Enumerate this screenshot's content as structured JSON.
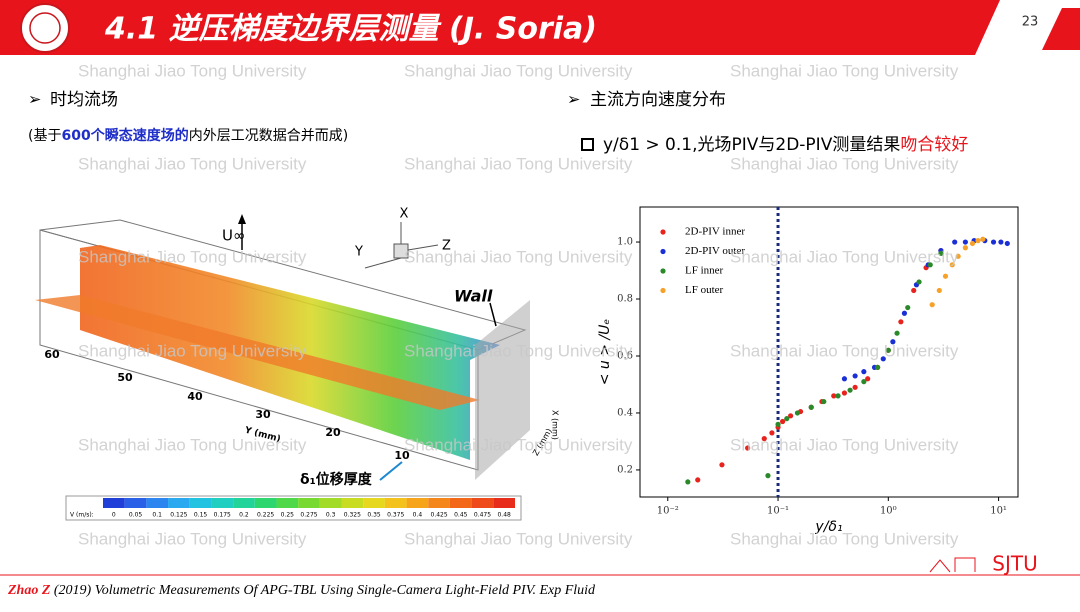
{
  "header": {
    "title": "4.1 逆压梯度边界层测量 (J. Soria)",
    "page_number": "23"
  },
  "watermark": "Shanghai Jiao Tong University",
  "left": {
    "bullet": "时均流场",
    "note_parts": [
      "(基于",
      "600个瞬态速度场的",
      "内外层工况数据合并而成)"
    ],
    "figure": {
      "velocity_label": "U∞",
      "axis_x": "X",
      "axis_y": "Y",
      "axis_z": "Z",
      "wall": "Wall",
      "y_ticks": [
        "60",
        "50",
        "40",
        "30",
        "20",
        "10"
      ],
      "y_axis_label": "Y (mm)",
      "x_axis_label": "X (mm)",
      "z_axis_label": "Z (mm)",
      "annotation": "δ₁位移厚度",
      "colorbar_label": "V (m/s):",
      "colorbar_ticks": [
        "0",
        "0.05",
        "0.1",
        "0.125",
        "0.15",
        "0.175",
        "0.2",
        "0.225",
        "0.25",
        "0.275",
        "0.3",
        "0.325",
        "0.35",
        "0.375",
        "0.4",
        "0.425",
        "0.45",
        "0.475",
        "0.48"
      ]
    }
  },
  "right": {
    "bullet": "主流方向速度分布",
    "statement_parts": [
      "y/δ1 > 0.1,光场PIV与2D-PIV测量结果",
      "吻合较好"
    ]
  },
  "chart_data": {
    "type": "scatter",
    "x_label": "y/δ₁",
    "y_label": "< u > /Uₑ",
    "log_x": true,
    "ref_line_x": 0.1,
    "xlim": [
      0.0056,
      15
    ],
    "ylim": [
      0.105,
      1.123
    ],
    "xticks": [
      {
        "value": 0.01,
        "label": "10⁻²"
      },
      {
        "value": 0.1,
        "label": "10⁻¹"
      },
      {
        "value": 1,
        "label": "10⁰"
      },
      {
        "value": 10,
        "label": "10¹"
      }
    ],
    "yticks": [
      0.2,
      0.4,
      0.6,
      0.8,
      {
        "value": 1,
        "label": "1.0"
      }
    ],
    "series": [
      {
        "name": "2D-PIV inner",
        "color": "#e8231e",
        "x": [
          0.0187,
          0.031,
          0.053,
          0.075,
          0.088,
          0.1,
          0.11,
          0.13,
          0.16,
          0.2,
          0.25,
          0.32,
          0.4,
          0.5,
          0.65,
          0.8,
          1.0,
          1.3,
          1.7,
          2.2,
          3.0
        ],
        "y": [
          0.165,
          0.218,
          0.277,
          0.31,
          0.33,
          0.35,
          0.37,
          0.39,
          0.405,
          0.42,
          0.44,
          0.46,
          0.47,
          0.49,
          0.52,
          0.56,
          0.62,
          0.72,
          0.83,
          0.91,
          0.97
        ]
      },
      {
        "name": "2D-PIV outer",
        "color": "#1a2fd6",
        "x": [
          0.4,
          0.5,
          0.6,
          0.75,
          0.9,
          1.1,
          1.4,
          1.8,
          2.3,
          3.0,
          4.0,
          5.0,
          6.0,
          7.5,
          9.0,
          10.5,
          12.0
        ],
        "y": [
          0.52,
          0.53,
          0.545,
          0.56,
          0.59,
          0.65,
          0.75,
          0.85,
          0.92,
          0.97,
          1.0,
          1.0,
          1.005,
          1.005,
          1.0,
          1.0,
          0.995
        ]
      },
      {
        "name": "LF inner",
        "color": "#2a8a2a",
        "x": [
          0.0152,
          0.081,
          0.1,
          0.12,
          0.15,
          0.2,
          0.26,
          0.35,
          0.45,
          0.6,
          0.8,
          1.0,
          1.2,
          1.5,
          1.9,
          2.4,
          3.0
        ],
        "y": [
          0.158,
          0.18,
          0.36,
          0.38,
          0.4,
          0.42,
          0.44,
          0.46,
          0.48,
          0.51,
          0.56,
          0.62,
          0.68,
          0.77,
          0.86,
          0.92,
          0.96
        ]
      },
      {
        "name": "LF outer",
        "color": "#f7a128",
        "x": [
          2.5,
          2.9,
          3.3,
          3.8,
          4.3,
          5.0,
          5.8,
          6.5,
          7.2
        ],
        "y": [
          0.78,
          0.83,
          0.88,
          0.92,
          0.95,
          0.98,
          0.995,
          1.005,
          1.01
        ]
      }
    ]
  },
  "footer": {
    "author": "Zhao Z",
    "citation": " (2019) Volumetric Measurements Of APG-TBL Using Single-Camera Light-Field PIV. Exp Fluid",
    "logo_text": "SJTU"
  }
}
